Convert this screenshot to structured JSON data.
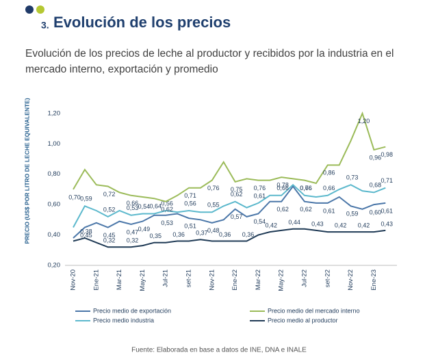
{
  "chart_data": {
    "type": "line",
    "section_number": "3.",
    "title": "Evolución de los precios",
    "subtitle": "Evolución de los precios de leche al productor y recibidos por la industria en el mercado interno, exportación y promedio",
    "ylabel": "PRECIO (US$ POR LITRO DE LECHE EQUIVALENTE)",
    "source": "Fuente: Elaborada en base a datos de INE, DNA e INALE",
    "categories": [
      "Nov-20",
      null,
      "Ene-21",
      null,
      "Mar-21",
      null,
      "May-21",
      null,
      "Jul-21",
      null,
      "set-21",
      null,
      "Nov-21",
      null,
      "Ene-22",
      null,
      "Mar-22",
      null,
      "May-22",
      null,
      "Jul-22",
      null,
      "set-22",
      null,
      "Nov-22",
      null,
      "Ene-23",
      null
    ],
    "ylim": [
      0.2,
      1.3
    ],
    "yticks": [
      {
        "value": 0.2,
        "label": "0,20"
      },
      {
        "value": 0.4,
        "label": "0,40"
      },
      {
        "value": 0.6,
        "label": "0,60"
      },
      {
        "value": 0.8,
        "label": "0,80"
      },
      {
        "value": 1.0,
        "label": "1,00"
      },
      {
        "value": 1.2,
        "label": "1,20"
      }
    ],
    "grid": false,
    "series": [
      {
        "name": "Precio medio de exportación",
        "color": "#4a76a8",
        "values": [
          0.38,
          0.45,
          0.48,
          0.45,
          0.49,
          0.47,
          0.49,
          0.53,
          0.53,
          0.54,
          0.51,
          0.5,
          0.48,
          0.5,
          0.57,
          0.52,
          0.54,
          0.62,
          0.62,
          0.72,
          0.62,
          0.61,
          0.61,
          0.65,
          0.59,
          0.57,
          0.6,
          0.61
        ],
        "value_labels": [
          null,
          "0,45",
          null,
          "0,45",
          null,
          "0,47",
          "0,49",
          null,
          "0,53",
          null,
          "0,51",
          null,
          "0,48",
          null,
          "0,57",
          null,
          "0,54",
          null,
          "0,62",
          null,
          "0,62",
          null,
          "0,61",
          null,
          "0,59",
          null,
          "0,60",
          "0,61"
        ]
      },
      {
        "name": "Precio medio industria",
        "color": "#5bb8cc",
        "values": [
          0.45,
          0.59,
          0.56,
          0.52,
          0.56,
          0.53,
          0.54,
          0.54,
          0.56,
          0.55,
          0.56,
          0.55,
          0.55,
          0.59,
          0.62,
          0.58,
          0.61,
          0.66,
          0.66,
          0.73,
          0.66,
          0.65,
          0.66,
          0.7,
          0.73,
          0.69,
          0.68,
          0.71
        ],
        "value_labels": [
          null,
          "0,59",
          null,
          "0,52",
          null,
          "0,53",
          "0,54",
          null,
          "0,56",
          null,
          "0,56",
          null,
          "0,55",
          null,
          "0,62",
          null,
          "0,61",
          null,
          "0,66",
          null,
          "0,66",
          null,
          "0,66",
          null,
          "0,73",
          null,
          "0,68",
          "0,71"
        ]
      },
      {
        "name": "Precio medio del mercado interno",
        "color": "#9bbb59",
        "values": [
          0.7,
          0.83,
          0.73,
          0.72,
          0.68,
          0.66,
          0.65,
          0.64,
          0.62,
          0.66,
          0.71,
          0.71,
          0.76,
          0.88,
          0.75,
          0.77,
          0.76,
          0.76,
          0.78,
          0.77,
          0.76,
          0.74,
          0.86,
          0.86,
          1.02,
          1.2,
          0.96,
          0.98
        ],
        "value_labels": [
          "0,70",
          null,
          null,
          "0,72",
          null,
          "0,66",
          null,
          "0,64",
          "0,62",
          null,
          "0,71",
          null,
          "0,76",
          null,
          "0,75",
          null,
          "0,76",
          null,
          "0,78",
          null,
          "0,76",
          null,
          "0,86",
          null,
          null,
          "1,20",
          "0,96",
          "0,98"
        ]
      },
      {
        "name": "Precio medio al productor",
        "color": "#1f3a55",
        "values": [
          0.36,
          0.38,
          0.35,
          0.32,
          0.32,
          0.32,
          0.33,
          0.35,
          0.35,
          0.36,
          0.36,
          0.37,
          0.36,
          0.36,
          0.36,
          0.36,
          0.4,
          0.42,
          0.43,
          0.44,
          0.44,
          0.43,
          0.42,
          0.42,
          0.42,
          0.42,
          0.42,
          0.43
        ],
        "value_labels": [
          null,
          "0,38",
          null,
          "0,32",
          null,
          "0,32",
          null,
          "0,35",
          null,
          "0,36",
          null,
          "0,37",
          null,
          "0,36",
          null,
          "0,36",
          null,
          "0,42",
          null,
          "0,44",
          null,
          "0,43",
          null,
          "0,42",
          null,
          "0,42",
          null,
          "0,43"
        ]
      }
    ]
  }
}
